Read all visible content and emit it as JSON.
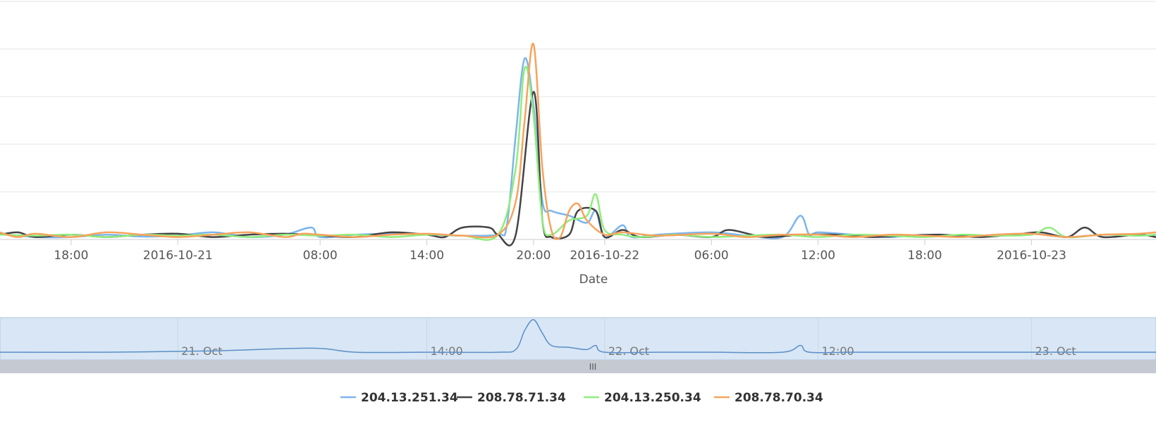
{
  "chart_data": {
    "type": "line",
    "title": "",
    "xlabel": "Date",
    "ylabel": "",
    "x_range": [
      "2016-10-20 14:00",
      "2016-10-23 12:00"
    ],
    "ylim": [
      0,
      5
    ],
    "grid": true,
    "legend_position": "bottom-center",
    "x_tick_labels": [
      {
        "t": 4,
        "label": "18:00"
      },
      {
        "t": 10,
        "label": "2016-10-21"
      },
      {
        "t": 18,
        "label": "08:00"
      },
      {
        "t": 24,
        "label": "14:00"
      },
      {
        "t": 30,
        "label": "20:00"
      },
      {
        "t": 34,
        "label": "2016-10-22"
      },
      {
        "t": 40,
        "label": "06:00"
      },
      {
        "t": 46,
        "label": "12:00"
      },
      {
        "t": 52,
        "label": "18:00"
      },
      {
        "t": 58,
        "label": "2016-10-23"
      }
    ],
    "navigator": {
      "labels": [
        {
          "t": 10,
          "label": "21. Oct"
        },
        {
          "t": 24,
          "label": "14:00"
        },
        {
          "t": 34,
          "label": "22. Oct"
        },
        {
          "t": 46,
          "label": "12:00"
        },
        {
          "t": 58,
          "label": "23. Oct"
        }
      ],
      "scrollbar_grip": "III"
    },
    "series": [
      {
        "name": "204.13.251.34",
        "color": "#7cb5ec",
        "points": [
          [
            0,
            0.12
          ],
          [
            2,
            0.05
          ],
          [
            4,
            0.05
          ],
          [
            6,
            0.1
          ],
          [
            8,
            0.06
          ],
          [
            10,
            0.08
          ],
          [
            12,
            0.15
          ],
          [
            14,
            0.05
          ],
          [
            16,
            0.1
          ],
          [
            17.5,
            0.25
          ],
          [
            18,
            0.05
          ],
          [
            20,
            0.1
          ],
          [
            22,
            0.12
          ],
          [
            24,
            0.1
          ],
          [
            26,
            0.08
          ],
          [
            28,
            0.1
          ],
          [
            28.5,
            0.3
          ],
          [
            29,
            2.2
          ],
          [
            29.5,
            3.8
          ],
          [
            30,
            2.8
          ],
          [
            30.5,
            0.8
          ],
          [
            31,
            0.6
          ],
          [
            32,
            0.5
          ],
          [
            33,
            0.35
          ],
          [
            33.5,
            0.6
          ],
          [
            34,
            0.05
          ],
          [
            35,
            0.3
          ],
          [
            35.5,
            0.05
          ],
          [
            37,
            0.1
          ],
          [
            40,
            0.15
          ],
          [
            42,
            0.08
          ],
          [
            44,
            0.05
          ],
          [
            45,
            0.5
          ],
          [
            45.5,
            0.1
          ],
          [
            46,
            0.15
          ],
          [
            48,
            0.1
          ],
          [
            50,
            0.05
          ],
          [
            52,
            0.1
          ],
          [
            54,
            0.05
          ],
          [
            56,
            0.1
          ],
          [
            58,
            0.12
          ],
          [
            60,
            0.05
          ],
          [
            62,
            0.1
          ],
          [
            64,
            0.08
          ],
          [
            65,
            0.1
          ]
        ]
      },
      {
        "name": "208.78.71.34",
        "color": "#434348",
        "points": [
          [
            0,
            0.1
          ],
          [
            1,
            0.15
          ],
          [
            2,
            0.05
          ],
          [
            4,
            0.1
          ],
          [
            6,
            0.05
          ],
          [
            8,
            0.1
          ],
          [
            10,
            0.12
          ],
          [
            12,
            0.05
          ],
          [
            14,
            0.1
          ],
          [
            16,
            0.12
          ],
          [
            18,
            0.08
          ],
          [
            20,
            0.05
          ],
          [
            22,
            0.15
          ],
          [
            24,
            0.1
          ],
          [
            25,
            0.05
          ],
          [
            26,
            0.25
          ],
          [
            27.5,
            0.25
          ],
          [
            28,
            0.1
          ],
          [
            29,
            0.1
          ],
          [
            30,
            3.1
          ],
          [
            30.5,
            0.4
          ],
          [
            31,
            0.05
          ],
          [
            32,
            0.1
          ],
          [
            32.5,
            0.6
          ],
          [
            33.5,
            0.6
          ],
          [
            34,
            0.05
          ],
          [
            35,
            0.2
          ],
          [
            36,
            0.05
          ],
          [
            38,
            0.1
          ],
          [
            40,
            0.05
          ],
          [
            41,
            0.2
          ],
          [
            43,
            0.05
          ],
          [
            45,
            0.1
          ],
          [
            47,
            0.1
          ],
          [
            49,
            0.05
          ],
          [
            51,
            0.08
          ],
          [
            53,
            0.1
          ],
          [
            55,
            0.05
          ],
          [
            57,
            0.1
          ],
          [
            58.5,
            0.15
          ],
          [
            60,
            0.05
          ],
          [
            61,
            0.25
          ],
          [
            62,
            0.05
          ],
          [
            64,
            0.1
          ],
          [
            65,
            0.05
          ]
        ]
      },
      {
        "name": "204.13.250.34",
        "color": "#90ed7d",
        "points": [
          [
            0,
            0.1
          ],
          [
            2,
            0.08
          ],
          [
            4,
            0.1
          ],
          [
            6,
            0.05
          ],
          [
            8,
            0.1
          ],
          [
            10,
            0.08
          ],
          [
            12,
            0.1
          ],
          [
            14,
            0.05
          ],
          [
            16,
            0.1
          ],
          [
            18,
            0.08
          ],
          [
            20,
            0.1
          ],
          [
            22,
            0.05
          ],
          [
            24,
            0.1
          ],
          [
            26,
            0.08
          ],
          [
            28,
            0.1
          ],
          [
            29,
            1.5
          ],
          [
            29.5,
            3.6
          ],
          [
            30,
            2.6
          ],
          [
            30.5,
            0.4
          ],
          [
            31,
            0.1
          ],
          [
            32,
            0.4
          ],
          [
            33,
            0.5
          ],
          [
            33.5,
            0.95
          ],
          [
            34,
            0.2
          ],
          [
            35,
            0.1
          ],
          [
            36,
            0.05
          ],
          [
            38,
            0.1
          ],
          [
            40,
            0.05
          ],
          [
            42,
            0.08
          ],
          [
            44,
            0.1
          ],
          [
            46,
            0.05
          ],
          [
            48,
            0.1
          ],
          [
            50,
            0.08
          ],
          [
            52,
            0.05
          ],
          [
            54,
            0.1
          ],
          [
            56,
            0.08
          ],
          [
            58,
            0.1
          ],
          [
            59,
            0.25
          ],
          [
            60,
            0.05
          ],
          [
            62,
            0.1
          ],
          [
            64,
            0.08
          ],
          [
            65,
            0.1
          ]
        ]
      },
      {
        "name": "208.78.70.34",
        "color": "#f7a35c",
        "points": [
          [
            0,
            0.15
          ],
          [
            1,
            0.05
          ],
          [
            2,
            0.12
          ],
          [
            4,
            0.05
          ],
          [
            6,
            0.15
          ],
          [
            8,
            0.1
          ],
          [
            10,
            0.05
          ],
          [
            12,
            0.1
          ],
          [
            14,
            0.15
          ],
          [
            16,
            0.05
          ],
          [
            17,
            0.12
          ],
          [
            18,
            0.1
          ],
          [
            20,
            0.05
          ],
          [
            22,
            0.1
          ],
          [
            24,
            0.12
          ],
          [
            26,
            0.08
          ],
          [
            28,
            0.1
          ],
          [
            29,
            0.8
          ],
          [
            29.5,
            2.5
          ],
          [
            30,
            4.1
          ],
          [
            30.5,
            1.5
          ],
          [
            31,
            0.2
          ],
          [
            31.5,
            0.05
          ],
          [
            32,
            0.6
          ],
          [
            32.5,
            0.75
          ],
          [
            33,
            0.4
          ],
          [
            34,
            0.1
          ],
          [
            35,
            0.15
          ],
          [
            37,
            0.08
          ],
          [
            40,
            0.12
          ],
          [
            42,
            0.05
          ],
          [
            44,
            0.1
          ],
          [
            46,
            0.1
          ],
          [
            48,
            0.05
          ],
          [
            50,
            0.1
          ],
          [
            52,
            0.08
          ],
          [
            54,
            0.05
          ],
          [
            56,
            0.1
          ],
          [
            58,
            0.12
          ],
          [
            60,
            0.05
          ],
          [
            62,
            0.1
          ],
          [
            64,
            0.12
          ],
          [
            65,
            0.15
          ]
        ]
      }
    ],
    "navigator_series": [
      [
        0,
        0.1
      ],
      [
        6,
        0.1
      ],
      [
        12,
        0.15
      ],
      [
        17.5,
        0.25
      ],
      [
        20,
        0.1
      ],
      [
        24,
        0.1
      ],
      [
        28,
        0.1
      ],
      [
        29,
        0.2
      ],
      [
        29.5,
        0.9
      ],
      [
        30,
        1.3
      ],
      [
        30.5,
        0.8
      ],
      [
        31,
        0.35
      ],
      [
        32,
        0.28
      ],
      [
        33,
        0.2
      ],
      [
        33.5,
        0.35
      ],
      [
        34,
        0.1
      ],
      [
        37,
        0.1
      ],
      [
        40,
        0.1
      ],
      [
        44,
        0.1
      ],
      [
        45,
        0.35
      ],
      [
        45.5,
        0.1
      ],
      [
        48,
        0.1
      ],
      [
        52,
        0.1
      ],
      [
        56,
        0.1
      ],
      [
        60,
        0.1
      ],
      [
        65,
        0.1
      ]
    ]
  }
}
